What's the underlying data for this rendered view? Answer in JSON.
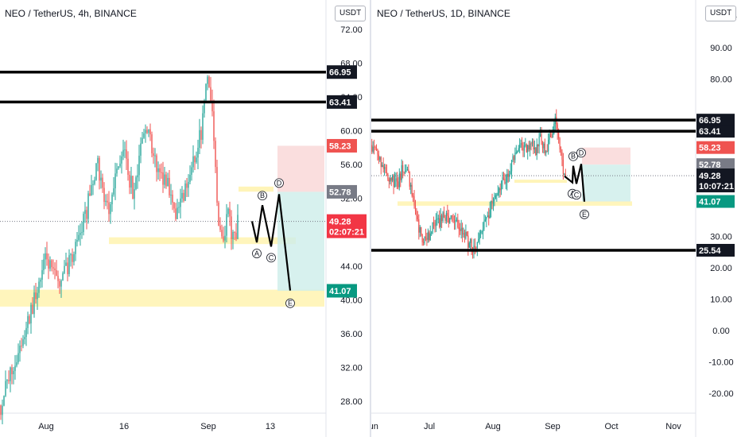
{
  "panels": [
    {
      "title": "NEO / TetherUS, 4h, BINANCE",
      "currency_button": "USDT",
      "last_price": "49.28",
      "countdown": "02:07:21"
    },
    {
      "title": "NEO / TetherUS, 1D, BINANCE",
      "currency_button": "USDT",
      "last_price": "49.28",
      "countdown": "10:07:21",
      "axis_top_fragment": "1"
    }
  ],
  "colors": {
    "up": "#26a69a",
    "down": "#ef5350",
    "zone": "#fff3b0",
    "stop_zone": "#f9d6d6",
    "target_zone": "#cdeeea",
    "level_tag": "#131722",
    "entry_tag": "#787b86",
    "stop_tag": "#ef5350",
    "target_tag": "#089981",
    "price_tag": "#f23645"
  },
  "chart_data": [
    {
      "type": "candlestick",
      "title": "NEO / TetherUS, 4h, BINANCE",
      "y_ticks": [
        "28.00",
        "32.00",
        "36.00",
        "40.00",
        "44.00",
        "48.00",
        "52.00",
        "56.00",
        "60.00",
        "64.00",
        "68.00",
        "72.00"
      ],
      "x_ticks": [
        "Aug",
        "16",
        "Sep",
        "13"
      ],
      "ylim": [
        26,
        76
      ],
      "horizontal_levels": [
        "66.95",
        "63.41"
      ],
      "support_zones": [
        [
          39.2,
          41.2
        ],
        [
          46.6,
          47.4
        ]
      ],
      "resistance_zone": [
        52.8,
        53.4
      ],
      "position": {
        "stop": "58.23",
        "entry": "52.78",
        "target": "41.07"
      },
      "last_price": "49.28",
      "wave_labels": [
        "A",
        "B",
        "C",
        "D",
        "E"
      ],
      "wave_points": [
        {
          "label": "A",
          "price": 46.8
        },
        {
          "label": "B",
          "price": 51.2
        },
        {
          "label": "C",
          "price": 46.3
        },
        {
          "label": "D",
          "price": 52.5
        },
        {
          "label": "E",
          "price": 41.1
        }
      ],
      "price_path": [
        [
          0,
          27.5
        ],
        [
          3,
          31
        ],
        [
          6,
          34
        ],
        [
          9,
          37.5
        ],
        [
          11,
          40
        ],
        [
          13,
          42.5
        ],
        [
          15,
          45
        ],
        [
          17,
          43
        ],
        [
          19,
          42
        ],
        [
          22,
          44
        ],
        [
          25,
          47
        ],
        [
          28,
          50
        ],
        [
          30,
          54
        ],
        [
          32,
          56
        ],
        [
          34,
          52
        ],
        [
          36,
          50
        ],
        [
          38,
          55
        ],
        [
          40,
          58
        ],
        [
          42,
          55
        ],
        [
          44,
          52
        ],
        [
          46,
          58
        ],
        [
          48,
          61
        ],
        [
          50,
          57
        ],
        [
          52,
          55
        ],
        [
          54,
          54.5
        ],
        [
          56,
          53
        ],
        [
          58,
          50
        ],
        [
          60,
          52
        ],
        [
          62,
          54
        ],
        [
          64,
          57
        ],
        [
          66,
          60
        ],
        [
          67,
          64
        ],
        [
          68,
          67
        ],
        [
          69,
          65
        ],
        [
          70,
          60
        ],
        [
          71,
          53
        ],
        [
          72,
          48
        ],
        [
          73,
          46
        ],
        [
          74,
          49
        ],
        [
          75,
          50
        ],
        [
          76,
          48
        ],
        [
          77,
          47
        ],
        [
          78,
          49.3
        ]
      ]
    },
    {
      "type": "candlestick",
      "title": "NEO / TetherUS, 1D, BINANCE",
      "y_ticks": [
        "-20.00",
        "-10.00",
        "0.00",
        "10.00",
        "20.00",
        "30.00",
        "80.00",
        "90.00"
      ],
      "x_ticks": [
        "Jun",
        "Jul",
        "Aug",
        "Sep",
        "Oct",
        "Nov"
      ],
      "ylim": [
        -26,
        104
      ],
      "horizontal_levels": [
        "66.95",
        "63.41",
        "25.54"
      ],
      "support_zones": [
        [
          39.7,
          41.1
        ]
      ],
      "resistance_zone": [
        47.0,
        48.0
      ],
      "position": {
        "stop": "58.23",
        "entry": "52.78",
        "target": "41.07"
      },
      "last_price": "49.28",
      "wave_labels": [
        "A",
        "B",
        "C",
        "D",
        "E"
      ],
      "wave_points": [
        {
          "label": "A",
          "price": 47.1
        },
        {
          "label": "B",
          "price": 52.4
        },
        {
          "label": "C",
          "price": 46.7
        },
        {
          "label": "D",
          "price": 53.0
        },
        {
          "label": "E",
          "price": 41.0
        }
      ],
      "price_path": [
        [
          0,
          59
        ],
        [
          2,
          57
        ],
        [
          4,
          53
        ],
        [
          6,
          50
        ],
        [
          8,
          48
        ],
        [
          10,
          46
        ],
        [
          12,
          52
        ],
        [
          14,
          50
        ],
        [
          16,
          42
        ],
        [
          18,
          34
        ],
        [
          20,
          27
        ],
        [
          22,
          30
        ],
        [
          24,
          33
        ],
        [
          26,
          34
        ],
        [
          28,
          36
        ],
        [
          30,
          36
        ],
        [
          32,
          34
        ],
        [
          34,
          33
        ],
        [
          36,
          31
        ],
        [
          38,
          28
        ],
        [
          40,
          26
        ],
        [
          42,
          30
        ],
        [
          44,
          34
        ],
        [
          46,
          38
        ],
        [
          48,
          44
        ],
        [
          50,
          46
        ],
        [
          52,
          48
        ],
        [
          54,
          50
        ],
        [
          56,
          56
        ],
        [
          58,
          58
        ],
        [
          60,
          57
        ],
        [
          62,
          60
        ],
        [
          64,
          57
        ],
        [
          66,
          62
        ],
        [
          68,
          56
        ],
        [
          70,
          62
        ],
        [
          72,
          66
        ],
        [
          74,
          58
        ],
        [
          75,
          52
        ],
        [
          76,
          49.3
        ]
      ]
    }
  ]
}
